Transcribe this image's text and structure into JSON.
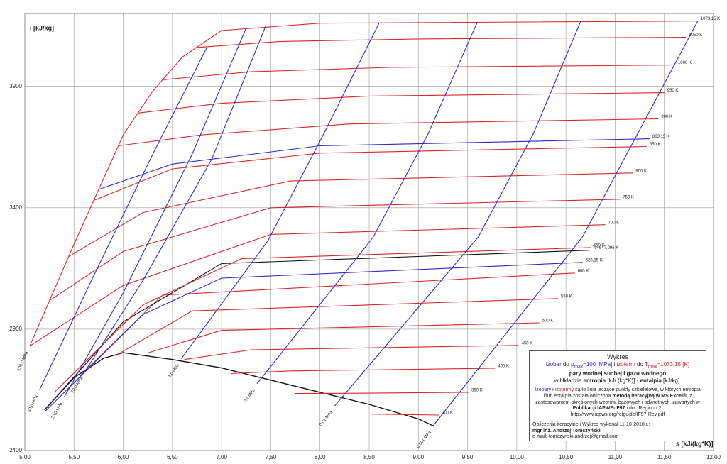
{
  "chart_data": {
    "type": "line",
    "y_label": "i [kJ/kg]",
    "x_label": "s [kJ/(kg*K)]",
    "xlim": [
      5.0,
      12.0
    ],
    "ylim": [
      2400,
      4200
    ],
    "xticks": [
      {
        "value": 5.0,
        "label": "5,00"
      },
      {
        "value": 5.5,
        "label": "5,50"
      },
      {
        "value": 6.0,
        "label": "6,00"
      },
      {
        "value": 6.5,
        "label": "6,50"
      },
      {
        "value": 7.0,
        "label": "7,00"
      },
      {
        "value": 7.5,
        "label": "7,50"
      },
      {
        "value": 8.0,
        "label": "8,00"
      },
      {
        "value": 8.5,
        "label": "8,50"
      },
      {
        "value": 9.0,
        "label": "9,00"
      },
      {
        "value": 9.5,
        "label": "9,50"
      },
      {
        "value": 10.0,
        "label": "10,00"
      },
      {
        "value": 10.5,
        "label": "10,50"
      },
      {
        "value": 11.0,
        "label": "11,00"
      },
      {
        "value": 11.5,
        "label": "11,50"
      },
      {
        "value": 12.0,
        "label": "12,00"
      }
    ],
    "yticks": [
      2400,
      2900,
      3400,
      3900
    ],
    "grid": true,
    "series": [
      {
        "color": "#111111",
        "x": [
          5.2,
          5.5,
          5.8,
          6.0,
          6.5,
          7.0,
          7.5,
          8.0,
          8.5,
          9.0,
          9.15
        ],
        "values": [
          2567,
          2700,
          2780,
          2803,
          2775,
          2740,
          2690,
          2640,
          2590,
          2530,
          2502
        ]
      },
      {
        "name": "300 K",
        "color": "#e02424",
        "x": [
          8.52,
          9.21
        ],
        "values": [
          2550,
          2546
        ]
      },
      {
        "name": "350 K",
        "color": "#e02424",
        "x": [
          7.74,
          8.4,
          9.51
        ],
        "values": [
          2635,
          2636,
          2640
        ]
      },
      {
        "name": "400 K",
        "color": "#e02424",
        "x": [
          7.09,
          7.7,
          9.78
        ],
        "values": [
          2717,
          2728,
          2739
        ]
      },
      {
        "name": "450 K",
        "color": "#e02424",
        "x": [
          6.62,
          7.3,
          10.02
        ],
        "values": [
          2775,
          2815,
          2833
        ]
      },
      {
        "name": "500 K",
        "color": "#e02424",
        "x": [
          6.25,
          7.0,
          10.23
        ],
        "values": [
          2802,
          2895,
          2926
        ]
      },
      {
        "name": "550 K",
        "color": "#e02424",
        "x": [
          5.92,
          6.7,
          10.42
        ],
        "values": [
          2790,
          2975,
          3026
        ]
      },
      {
        "name": "600 K",
        "color": "#e02424",
        "x": [
          5.56,
          6.4,
          10.59
        ],
        "values": [
          2707,
          3040,
          3131
        ]
      },
      {
        "name": "623,15 K",
        "color": "#2a2ad0",
        "x": [
          5.21,
          6.2,
          7.0,
          10.67
        ],
        "values": [
          2563,
          2960,
          3110,
          3175
        ]
      },
      {
        "name": "Tc=647,096 K",
        "color": "#111111",
        "x": [
          5.2,
          6.0,
          7.0,
          10.74
        ],
        "values": [
          2567,
          2930,
          3170,
          3225
        ]
      },
      {
        "name": "650 K",
        "color": "#e02424",
        "x": [
          5.3,
          6.2,
          7.2,
          10.75
        ],
        "values": [
          2640,
          3000,
          3190,
          3236
        ]
      },
      {
        "name": "700 K",
        "color": "#e02424",
        "x": [
          5.05,
          6.0,
          7.5,
          10.9
        ],
        "values": [
          2830,
          3080,
          3290,
          3330
        ]
      },
      {
        "name": "750 K",
        "color": "#e02424",
        "x": [
          5.25,
          6.0,
          7.5,
          11.05
        ],
        "values": [
          3017,
          3220,
          3400,
          3435
        ]
      },
      {
        "name": "800 K",
        "color": "#e02424",
        "x": [
          5.45,
          6.2,
          7.7,
          11.18
        ],
        "values": [
          3200,
          3380,
          3510,
          3543
        ]
      },
      {
        "name": "850 K",
        "color": "#e02424",
        "x": [
          5.7,
          6.5,
          8.0,
          11.32
        ],
        "values": [
          3430,
          3560,
          3625,
          3652
        ]
      },
      {
        "name": "863,15 K",
        "color": "#2a2ad0",
        "x": [
          5.75,
          6.5,
          8.0,
          11.35
        ],
        "values": [
          3475,
          3580,
          3655,
          3684
        ]
      },
      {
        "name": "900 K",
        "color": "#e02424",
        "x": [
          5.95,
          6.8,
          8.3,
          11.44
        ],
        "values": [
          3655,
          3700,
          3745,
          3766
        ]
      },
      {
        "name": "950 K",
        "color": "#e02424",
        "x": [
          6.15,
          7.0,
          8.5,
          11.5
        ],
        "values": [
          3790,
          3830,
          3860,
          3874
        ]
      },
      {
        "name": "1000 K",
        "color": "#e02424",
        "x": [
          6.4,
          7.3,
          8.7,
          11.61
        ],
        "values": [
          3927,
          3960,
          3978,
          3988
        ]
      },
      {
        "name": "1050 K",
        "color": "#e02424",
        "x": [
          6.75,
          7.6,
          9.0,
          11.72
        ],
        "values": [
          4060,
          4085,
          4095,
          4102
        ]
      },
      {
        "name": "1073,15 K",
        "color": "#e02424",
        "x": [
          7.0,
          8.0,
          11.84
        ],
        "values": [
          4130,
          4160,
          4169
        ]
      }
    ],
    "isobars": [
      {
        "name": "100,0 MPa",
        "color": "#e02424",
        "x": [
          5.05,
          5.5,
          6.0,
          6.3,
          6.6,
          7.0
        ],
        "values": [
          2830,
          3250,
          3700,
          3880,
          4020,
          4130
        ]
      },
      {
        "name": "50,0 MPa",
        "color": "#2a2ad0",
        "x": [
          5.15,
          5.7,
          6.3,
          6.85
        ],
        "values": [
          2650,
          3120,
          3620,
          4060
        ]
      },
      {
        "name": "20,0 MPa",
        "color": "#2a2ad0",
        "x": [
          5.4,
          6.0,
          6.7,
          7.25
        ],
        "values": [
          2620,
          3050,
          3620,
          4140
        ]
      },
      {
        "name": "10,0 MPa",
        "color": "#2a2ad0",
        "x": [
          5.61,
          6.2,
          6.9,
          7.45
        ],
        "values": [
          2725,
          3100,
          3600,
          4150
        ]
      },
      {
        "name": "1,0 MPa",
        "color": "#2a2ad0",
        "x": [
          6.59,
          7.47,
          8.03,
          8.6
        ],
        "values": [
          2778,
          3264,
          3698,
          4160
        ]
      },
      {
        "name": "0,1 MPa",
        "color": "#2a2ad0",
        "x": [
          7.36,
          8.54,
          9.1,
          9.6
        ],
        "values": [
          2675,
          3278,
          3705,
          4165
        ]
      },
      {
        "name": "0,01 MPa",
        "color": "#2a2ad0",
        "x": [
          8.15,
          9.61,
          10.17,
          10.65
        ],
        "values": [
          2584,
          3280,
          3706,
          4168
        ]
      },
      {
        "name": "0,001 MPa",
        "color": "#2a2ad0",
        "x": [
          9.15,
          10.67,
          11.23,
          11.84
        ],
        "values": [
          2502,
          3281,
          3706,
          4169
        ]
      }
    ],
    "annotation": {
      "title": "Wykres",
      "line2": {
        "a": "izobar",
        "b": "do",
        "c": "p",
        "d": "max",
        "e": "=100 [MPa]",
        "f": "i",
        "g": "izoterm",
        "h": "do",
        "i": "T",
        "j": "max",
        "k": "=1073,15 [K]"
      },
      "line3": "pary wodnej suchej i gazu wodnego",
      "line4": {
        "a": "w Układzie",
        "b": "entropia",
        "c": "[kJ/ (kg*K)] -",
        "d": "entalpia",
        "e": "[kJ/kg]."
      },
      "note": {
        "a": "Izobary",
        "b": "i",
        "c": "izotermy",
        "d": "są to linie łączące punkty szkieletowe, w których entropia i/lub entalpia została obliczona",
        "e": "metodą iteracyjną w MS Excel®",
        "f": ", z zastosowaniem określonych wzorów, bazowych i odwrotnych, zawartych w",
        "g": "Publikacji IAPWS-IF97",
        "h": "i dot. Regionu 2.",
        "i": "http://www.iapws.org/relguide/IF97-Rev.pdf"
      },
      "credit1": "Obliczenia iteracyjne i Wykres wykonał 11-10-2018 r.:",
      "credit2": "mgr inż. Andrzej Tomczyński",
      "credit3": "e-mail: tomczynski.andrzej@gmail.com"
    }
  }
}
